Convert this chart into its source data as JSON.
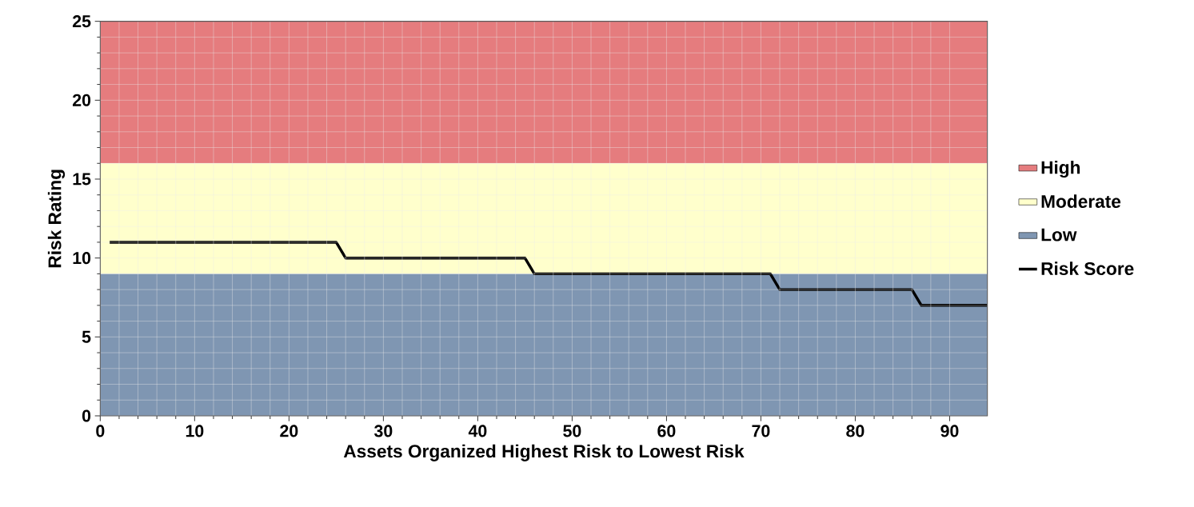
{
  "chart_data": {
    "type": "line",
    "xlabel": "Assets Organized Highest Risk to Lowest Risk",
    "ylabel": "Risk Rating",
    "xlim": [
      0,
      94
    ],
    "xticks": [
      0,
      10,
      20,
      30,
      40,
      50,
      60,
      70,
      80,
      90
    ],
    "ylim": [
      0,
      25
    ],
    "yticks": [
      0,
      5,
      10,
      15,
      20,
      25
    ],
    "grid": true,
    "legend": "right",
    "bands": [
      {
        "axis": "y",
        "from": 16,
        "to": 25,
        "label": "High",
        "color": "#e57c7e"
      },
      {
        "axis": "y",
        "from": 9,
        "to": 16,
        "label": "Moderate",
        "color": "#ffffcc"
      },
      {
        "axis": "y",
        "from": 0,
        "to": 9,
        "label": "Low",
        "color": "#7f96b2"
      }
    ],
    "series": [
      {
        "name": "Risk Score",
        "color": "#000000",
        "x": [
          1,
          25,
          26,
          45,
          46,
          71,
          72,
          86,
          87,
          94
        ],
        "values": [
          11,
          11,
          10,
          10,
          9,
          9,
          8,
          8,
          7,
          7
        ]
      }
    ]
  }
}
